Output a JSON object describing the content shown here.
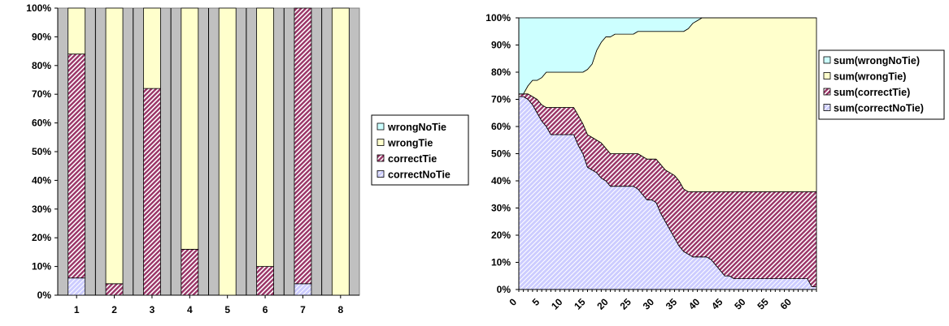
{
  "colors": {
    "wrongNoTie": "#CCFFFF",
    "wrongTie": "#FFFFCC",
    "correctTie": "#993366",
    "correctNoTie": "#CCCCFF",
    "plot_bg_left": "#C0C0C0",
    "plot_bg_right": "#FFFFFF"
  },
  "chart_data": [
    {
      "type": "bar",
      "stacked": "percent",
      "categories": [
        "1",
        "2",
        "3",
        "4",
        "5",
        "6",
        "7",
        "8"
      ],
      "yticks": [
        "0%",
        "10%",
        "20%",
        "30%",
        "40%",
        "50%",
        "60%",
        "70%",
        "80%",
        "90%",
        "100%"
      ],
      "ylim": [
        0,
        100
      ],
      "grid": true,
      "legend_position": "right",
      "series": [
        {
          "name": "correctNoTie",
          "values": [
            6,
            0,
            0,
            0,
            0,
            0,
            4,
            0
          ]
        },
        {
          "name": "correctTie",
          "values": [
            78,
            4,
            72,
            16,
            0,
            10,
            96,
            0
          ]
        },
        {
          "name": "wrongTie",
          "values": [
            16,
            96,
            28,
            84,
            100,
            90,
            0,
            100
          ]
        },
        {
          "name": "wrongNoTie",
          "values": [
            0,
            0,
            0,
            0,
            0,
            0,
            0,
            0
          ]
        }
      ],
      "legend_order": [
        "wrongNoTie",
        "wrongTie",
        "correctTie",
        "correctNoTie"
      ]
    },
    {
      "type": "area",
      "stacked": "percent",
      "xlim": [
        0,
        65
      ],
      "xticks": [
        "0",
        "5",
        "10",
        "15",
        "20",
        "25",
        "30",
        "35",
        "40",
        "45",
        "50",
        "55",
        "60"
      ],
      "yticks": [
        "0%",
        "10%",
        "20%",
        "30%",
        "40%",
        "50%",
        "60%",
        "70%",
        "80%",
        "90%",
        "100%"
      ],
      "ylim": [
        0,
        100
      ],
      "grid": false,
      "legend_position": "right",
      "x": [
        0,
        1,
        2,
        3,
        4,
        5,
        6,
        7,
        8,
        9,
        10,
        11,
        12,
        13,
        14,
        15,
        16,
        17,
        18,
        19,
        20,
        21,
        22,
        23,
        24,
        25,
        26,
        27,
        28,
        29,
        30,
        31,
        32,
        33,
        34,
        35,
        36,
        37,
        38,
        39,
        40,
        41,
        42,
        43,
        44,
        45,
        46,
        47,
        48,
        49,
        50,
        51,
        52,
        53,
        54,
        55,
        56,
        57,
        58,
        59,
        60,
        61,
        62,
        63,
        64,
        65
      ],
      "series": [
        {
          "name": "sum(correctNoTie)",
          "values": [
            71,
            71,
            70,
            68,
            65,
            62,
            60,
            57,
            57,
            57,
            57,
            57,
            57,
            53,
            50,
            45,
            44,
            43,
            41,
            40,
            38,
            38,
            38,
            38,
            38,
            38,
            37,
            35,
            33,
            33,
            32,
            28,
            25,
            22,
            19,
            16,
            14,
            13,
            12,
            12,
            12,
            12,
            11,
            9,
            7,
            5,
            5,
            4,
            4,
            4,
            4,
            4,
            4,
            4,
            4,
            4,
            4,
            4,
            4,
            4,
            4,
            4,
            4,
            4,
            1,
            1
          ]
        },
        {
          "name": "sum(correctTie)",
          "values": [
            1,
            1,
            2,
            3,
            5,
            6,
            7,
            10,
            10,
            10,
            10,
            10,
            10,
            11,
            11,
            12,
            12,
            12,
            13,
            12,
            12,
            12,
            12,
            12,
            12,
            12,
            13,
            14,
            15,
            15,
            16,
            18,
            19,
            21,
            23,
            24,
            23,
            23,
            24,
            24,
            24,
            24,
            25,
            27,
            29,
            31,
            31,
            32,
            32,
            32,
            32,
            32,
            32,
            32,
            32,
            32,
            32,
            32,
            32,
            32,
            32,
            32,
            32,
            32,
            35,
            35
          ]
        },
        {
          "name": "sum(wrongTie)",
          "values": [
            0,
            0,
            3,
            6,
            7,
            10,
            13,
            13,
            13,
            13,
            13,
            13,
            13,
            16,
            19,
            24,
            27,
            33,
            37,
            41,
            43,
            44,
            44,
            44,
            44,
            44,
            45,
            46,
            47,
            47,
            47,
            49,
            51,
            52,
            53,
            55,
            58,
            60,
            62,
            63,
            64,
            64,
            64,
            64,
            64,
            64,
            64,
            64,
            64,
            64,
            64,
            64,
            64,
            64,
            64,
            64,
            64,
            64,
            64,
            64,
            64,
            64,
            64,
            64,
            64,
            64
          ]
        },
        {
          "name": "sum(wrongNoTie)",
          "values": [
            28,
            28,
            25,
            23,
            23,
            22,
            20,
            20,
            20,
            20,
            20,
            20,
            20,
            20,
            20,
            19,
            17,
            12,
            9,
            7,
            7,
            6,
            6,
            6,
            6,
            6,
            5,
            5,
            5,
            5,
            5,
            5,
            5,
            5,
            5,
            5,
            5,
            4,
            2,
            1,
            0,
            0,
            0,
            0,
            0,
            0,
            0,
            0,
            0,
            0,
            0,
            0,
            0,
            0,
            0,
            0,
            0,
            0,
            0,
            0,
            0,
            0,
            0,
            0,
            0,
            0
          ]
        }
      ],
      "legend_order": [
        "sum(wrongNoTie)",
        "sum(wrongTie)",
        "sum(correctTie)",
        "sum(correctNoTie)"
      ]
    }
  ]
}
